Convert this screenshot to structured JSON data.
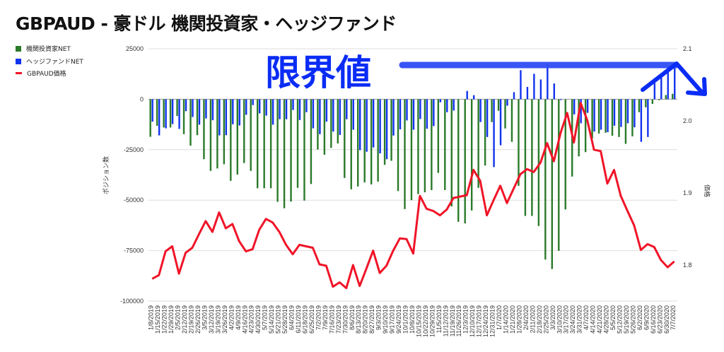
{
  "title": "GBPAUD - 豪ドル 機関投資家・ヘッジファンド",
  "annotation": "限界値",
  "colors": {
    "institutional": "#2a7a2a",
    "hedge": "#1133ee",
    "price": "#f01428",
    "annotation": "#2f4cf5"
  },
  "chart_data": {
    "type": "bar+line",
    "title": "GBPAUD - 豪ドル 機関投資家・ヘッジファンド",
    "ylabel": "ポジション数",
    "y2label": "価格",
    "ylim": [
      -100000,
      25000
    ],
    "y2lim": [
      1.75,
      2.1
    ],
    "yticks": [
      "25000",
      "0",
      "-25000",
      "-50000",
      "-75000",
      "-100000"
    ],
    "y2ticks": [
      "2.1",
      "2.0",
      "1.9",
      "1.8"
    ],
    "legend_position": "left",
    "categories": [
      "1/8/2019",
      "1/15/2019",
      "1/22/2019",
      "1/29/2019",
      "2/5/2019",
      "2/12/2019",
      "2/19/2019",
      "2/26/2019",
      "3/5/2019",
      "3/12/2019",
      "3/19/2019",
      "3/26/2019",
      "4/2/2019",
      "4/9/2019",
      "4/16/2019",
      "4/23/2019",
      "4/30/2019",
      "5/7/2019",
      "5/14/2019",
      "5/21/2019",
      "5/28/2019",
      "6/4/2019",
      "6/11/2019",
      "6/18/2019",
      "6/25/2019",
      "7/2/2019",
      "7/9/2019",
      "7/16/2019",
      "7/23/2019",
      "7/30/2019",
      "8/6/2019",
      "8/13/2019",
      "8/20/2019",
      "8/27/2019",
      "9/3/2019",
      "9/10/2019",
      "9/17/2019",
      "9/24/2019",
      "10/1/2019",
      "10/8/2019",
      "10/15/2019",
      "10/22/2019",
      "10/29/2019",
      "11/5/2019",
      "11/12/2019",
      "11/19/2019",
      "11/26/2019",
      "12/3/2019",
      "12/10/2019",
      "12/17/2019",
      "12/24/2019",
      "12/31/2019",
      "1/7/2020",
      "1/14/2020",
      "1/21/2020",
      "1/28/2020",
      "2/4/2020",
      "2/11/2020",
      "2/18/2020",
      "2/25/2020",
      "3/3/2020",
      "3/10/2020",
      "3/17/2020",
      "3/24/2020",
      "3/31/2020",
      "4/7/2020",
      "4/14/2020",
      "4/21/2020",
      "4/28/2020",
      "5/5/2020",
      "5/12/2020",
      "5/19/2020",
      "5/26/2020",
      "6/2/2020",
      "6/9/2020",
      "6/16/2020",
      "6/23/2020",
      "6/30/2020",
      "7/7/2020"
    ],
    "series": [
      {
        "name": "機関投資家NET",
        "type": "bar",
        "axis": "left",
        "values": [
          -18600,
          -13200,
          -14000,
          -14000,
          -8300,
          -17300,
          -23000,
          -17800,
          -29700,
          -35500,
          -34300,
          -32200,
          -40400,
          -37300,
          -31600,
          -35500,
          -44100,
          -44100,
          -44100,
          -50800,
          -54000,
          -50700,
          -43900,
          -50200,
          -42000,
          -24900,
          -27500,
          -24100,
          -21900,
          -39000,
          -44600,
          -43200,
          -41200,
          -42200,
          -40800,
          -32500,
          -30500,
          -45500,
          -54400,
          -50000,
          -47000,
          -46100,
          -45000,
          -36500,
          -45000,
          -53100,
          -60700,
          -61500,
          -55100,
          -43900,
          -32800,
          -11300,
          -5700,
          -14500,
          -21100,
          -42900,
          -57800,
          -57800,
          -62800,
          -79400,
          -84100,
          -75100,
          -54600,
          -38300,
          -28300,
          -26200,
          -19500,
          -17000,
          -16600,
          -18100,
          -18700,
          -22100,
          -18400,
          -6400,
          -4000,
          -2300,
          -500,
          2100,
          2700
        ]
      },
      {
        "name": "ヘッジファンドNET",
        "type": "bar",
        "axis": "left",
        "values": [
          -11100,
          -17900,
          -14400,
          -12300,
          -14700,
          -5900,
          -8800,
          -12600,
          -9500,
          -10400,
          -17900,
          -17800,
          -12400,
          -13000,
          -7700,
          -2900,
          -7000,
          -8100,
          -12600,
          -9900,
          -9900,
          -5300,
          -10300,
          -6400,
          -14400,
          -17300,
          -11100,
          -16000,
          -17700,
          -9900,
          -15100,
          -25200,
          -26000,
          -23900,
          -26800,
          -29700,
          -18000,
          -14900,
          -10500,
          -15100,
          -9800,
          -14600,
          -13300,
          -1500,
          -6400,
          -5600,
          0,
          4100,
          2000,
          -11300,
          -18700,
          -33600,
          -22800,
          -3200,
          3500,
          14400,
          6100,
          12600,
          9800,
          17300,
          7800,
          -400,
          0,
          -7500,
          -11900,
          -6700,
          -16000,
          -15100,
          -16300,
          -13100,
          -13700,
          -11900,
          -13900,
          -21100,
          -18700,
          8000,
          10900,
          13800,
          15600
        ]
      },
      {
        "name": "GBPAUD価格",
        "type": "line",
        "axis": "right",
        "values": [
          1.781,
          1.786,
          1.819,
          1.826,
          1.788,
          1.817,
          1.824,
          1.843,
          1.861,
          1.846,
          1.873,
          1.851,
          1.857,
          1.833,
          1.819,
          1.822,
          1.849,
          1.864,
          1.859,
          1.846,
          1.828,
          1.815,
          1.828,
          1.826,
          1.824,
          1.801,
          1.799,
          1.77,
          1.776,
          1.768,
          1.8,
          1.771,
          1.795,
          1.82,
          1.789,
          1.799,
          1.82,
          1.837,
          1.836,
          1.816,
          1.896,
          1.878,
          1.875,
          1.869,
          1.877,
          1.893,
          1.895,
          1.897,
          1.932,
          1.917,
          1.869,
          1.89,
          1.91,
          1.886,
          1.906,
          1.926,
          1.933,
          1.929,
          1.942,
          1.969,
          1.944,
          1.983,
          2.011,
          1.97,
          2.025,
          2.001,
          1.96,
          1.958,
          1.913,
          1.932,
          1.896,
          1.875,
          1.855,
          1.821,
          1.829,
          1.825,
          1.807,
          1.797,
          1.805
        ]
      }
    ]
  }
}
